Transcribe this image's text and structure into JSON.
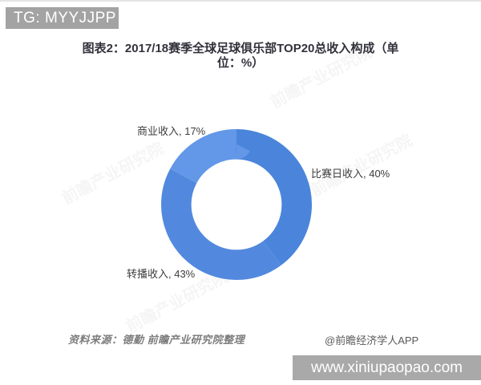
{
  "top_badge": {
    "text": "TG: MYYJJPP"
  },
  "title": {
    "text": "图表2：2017/18赛季全球足球俱乐部TOP20总收入构成（单位：%）"
  },
  "chart_data": {
    "type": "pie",
    "subtype": "donut",
    "title": "2017/18赛季全球足球俱乐部TOP20总收入构成",
    "unit": "%",
    "categories": [
      "比赛日收入",
      "转播收入",
      "商业收入"
    ],
    "values": [
      40,
      43,
      17
    ],
    "colors": [
      "#4a85db",
      "#5289de",
      "#6397e8"
    ],
    "labels": [
      "比赛日收入, 40%",
      "转播收入, 43%",
      "商业收入, 17%"
    ],
    "start_angle_deg": 0,
    "direction": "clockwise",
    "inner_radius_ratio": 0.6,
    "legend_position": "none",
    "grid": false
  },
  "watermark": {
    "text": "前瞻产业研究院"
  },
  "source_note": {
    "text": "资料来源：德勤 前瞻产业研究院整理"
  },
  "credit": {
    "text": "@前瞻经济学人APP"
  },
  "bottom_bar": {
    "text": "www.xiniupaopao.com"
  }
}
